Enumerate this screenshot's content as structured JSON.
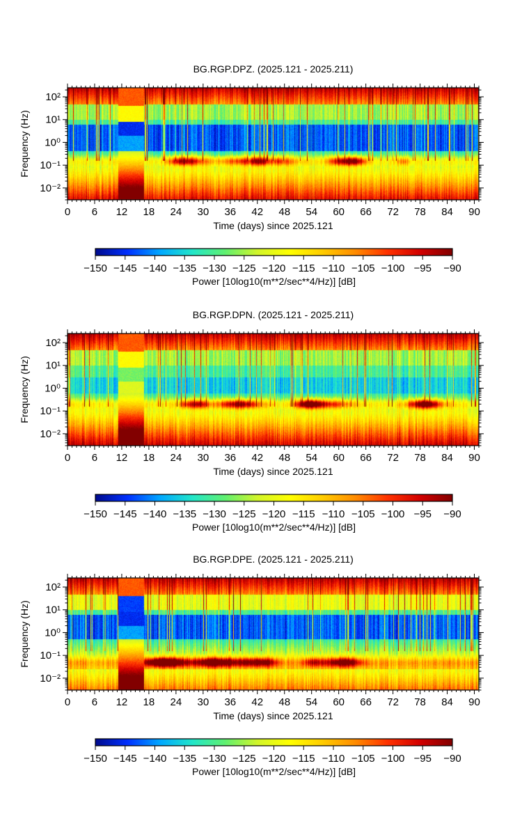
{
  "chart_data": [
    {
      "type": "heatmap",
      "title": "BG.RGP.DPZ. (2025.121 - 2025.211)",
      "xlabel": "Time (days) since 2025.121",
      "ylabel": "Frequency (Hz)",
      "xlim": [
        0,
        91
      ],
      "ylim": [
        0.003,
        250
      ],
      "yscale": "log",
      "x_ticks": [
        "0",
        "6",
        "12",
        "18",
        "24",
        "30",
        "36",
        "42",
        "48",
        "54",
        "60",
        "66",
        "72",
        "78",
        "84",
        "90"
      ],
      "y_ticks": [
        "10²",
        "10¹",
        "10⁰",
        "10⁻¹",
        "10⁻²"
      ],
      "colorbar": {
        "label": "Power [10log10(m**2/sec**4/Hz)] [dB]",
        "range": [
          -150,
          -90
        ],
        "ticks": [
          "−150",
          "−145",
          "−140",
          "−135",
          "−130",
          "−125",
          "−120",
          "−115",
          "−110",
          "−105",
          "−100",
          "−95",
          "−90"
        ],
        "colormap": [
          "#000a8c",
          "#0030ff",
          "#00a8ff",
          "#22e6c8",
          "#60f070",
          "#d2f52a",
          "#ffff00",
          "#ffcc00",
          "#ff8c00",
          "#ff3200",
          "#d20000",
          "#820000"
        ]
      },
      "features": {
        "gap_days": [
          11.2,
          17.0
        ],
        "quiet_band_hz": [
          0.4,
          6.0
        ],
        "microseism_peak_hz": 0.15
      }
    },
    {
      "type": "heatmap",
      "title": "BG.RGP.DPN. (2025.121 - 2025.211)",
      "xlabel": "Time (days) since 2025.121",
      "ylabel": "Frequency (Hz)",
      "xlim": [
        0,
        91
      ],
      "ylim": [
        0.003,
        250
      ],
      "yscale": "log",
      "x_ticks": [
        "0",
        "6",
        "12",
        "18",
        "24",
        "30",
        "36",
        "42",
        "48",
        "54",
        "60",
        "66",
        "72",
        "78",
        "84",
        "90"
      ],
      "y_ticks": [
        "10²",
        "10¹",
        "10⁰",
        "10⁻¹",
        "10⁻²"
      ],
      "colorbar": {
        "label": "Power [10log10(m**2/sec**4/Hz)] [dB]",
        "range": [
          -150,
          -90
        ],
        "ticks": [
          "−150",
          "−145",
          "−140",
          "−135",
          "−130",
          "−125",
          "−120",
          "−115",
          "−110",
          "−105",
          "−100",
          "−95",
          "−90"
        ],
        "colormap": [
          "#000a8c",
          "#0030ff",
          "#00a8ff",
          "#22e6c8",
          "#60f070",
          "#d2f52a",
          "#ffff00",
          "#ffcc00",
          "#ff8c00",
          "#ff3200",
          "#d20000",
          "#820000"
        ]
      },
      "features": {
        "gap_days": [
          11.2,
          17.0
        ],
        "quiet_band_hz": [
          0.6,
          3.0
        ],
        "microseism_peak_hz": 0.2
      }
    },
    {
      "type": "heatmap",
      "title": "BG.RGP.DPE. (2025.121 - 2025.211)",
      "xlabel": "Time (days) since 2025.121",
      "ylabel": "Frequency (Hz)",
      "xlim": [
        0,
        91
      ],
      "ylim": [
        0.003,
        250
      ],
      "yscale": "log",
      "x_ticks": [
        "0",
        "6",
        "12",
        "18",
        "24",
        "30",
        "36",
        "42",
        "48",
        "54",
        "60",
        "66",
        "72",
        "78",
        "84",
        "90"
      ],
      "y_ticks": [
        "10²",
        "10¹",
        "10⁰",
        "10⁻¹",
        "10⁻²"
      ],
      "colorbar": {
        "label": "Power [10log10(m**2/sec**4/Hz)] [dB]",
        "range": [
          -150,
          -90
        ],
        "ticks": [
          "−150",
          "−145",
          "−140",
          "−135",
          "−130",
          "−125",
          "−120",
          "−115",
          "−110",
          "−105",
          "−100",
          "−95",
          "−90"
        ],
        "colormap": [
          "#000a8c",
          "#0030ff",
          "#00a8ff",
          "#22e6c8",
          "#60f070",
          "#d2f52a",
          "#ffff00",
          "#ffcc00",
          "#ff8c00",
          "#ff3200",
          "#d20000",
          "#820000"
        ]
      },
      "features": {
        "gap_days": [
          11.2,
          17.0
        ],
        "quiet_band_hz": [
          0.5,
          6.0
        ],
        "microseism_peak_hz": 0.05
      }
    }
  ]
}
